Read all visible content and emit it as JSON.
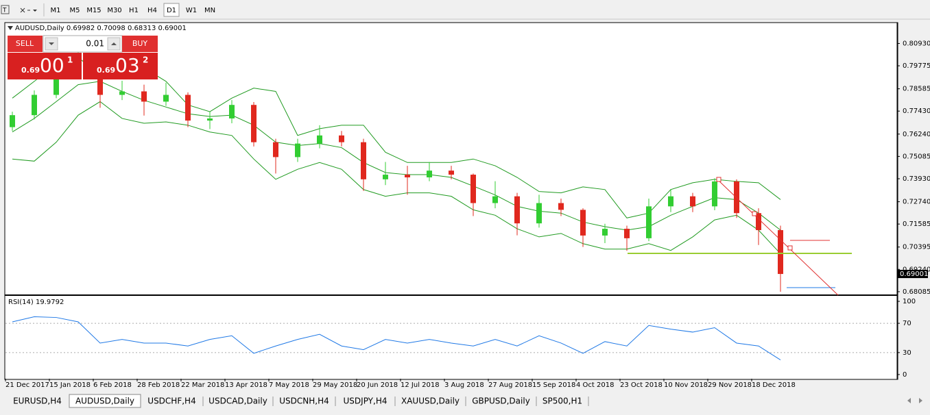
{
  "toolbar": {
    "timeframes": [
      "M1",
      "M5",
      "M15",
      "M30",
      "H1",
      "H4",
      "D1",
      "W1",
      "MN"
    ],
    "active": 6
  },
  "trade_panel": {
    "sell": "SELL",
    "buy": "BUY",
    "lot": "0.01",
    "bid": {
      "prefix": "0.69",
      "big": "00",
      "sup": "1"
    },
    "ask": {
      "prefix": "0.69",
      "big": "03",
      "sup": "2"
    }
  },
  "chart_data": [
    {
      "type": "candlestick",
      "title": "AUDUSD,Daily 0.69982 0.70098 0.68313 0.69001",
      "categories": [
        "21 Dec 2017",
        null,
        "15 Jan 2018",
        null,
        "6 Feb 2018",
        null,
        "28 Feb 2018",
        null,
        "22 Mar 2018",
        null,
        "13 Apr 2018",
        null,
        "7 May 2018",
        null,
        "29 May 2018",
        null,
        "20 Jun 2018",
        null,
        "12 Jul 2018",
        null,
        "3 Aug 2018",
        null,
        "27 Aug 2018",
        null,
        "15 Sep 2018",
        null,
        "4 Oct 2018",
        null,
        "23 Oct 2018",
        null,
        "10 Nov 2018",
        null,
        "29 Nov 2018",
        null,
        "18 Dec 2018",
        null
      ],
      "ohlc": [
        [
          0.766,
          0.774,
          0.764,
          0.7722
        ],
        [
          0.7722,
          0.785,
          0.77,
          0.7827
        ],
        [
          0.7827,
          0.798,
          0.781,
          0.795
        ],
        [
          0.795,
          0.81,
          0.793,
          0.7967
        ],
        [
          0.7967,
          0.8,
          0.776,
          0.7827
        ],
        [
          0.7827,
          0.79,
          0.78,
          0.7845
        ],
        [
          0.7845,
          0.788,
          0.772,
          0.7792
        ],
        [
          0.7792,
          0.789,
          0.777,
          0.7827
        ],
        [
          0.7827,
          0.784,
          0.766,
          0.7694
        ],
        [
          0.7694,
          0.774,
          0.765,
          0.7705
        ],
        [
          0.7705,
          0.78,
          0.768,
          0.7775
        ],
        [
          0.7775,
          0.779,
          0.756,
          0.7582
        ],
        [
          0.7582,
          0.76,
          0.742,
          0.7505
        ],
        [
          0.7505,
          0.76,
          0.748,
          0.7575
        ],
        [
          0.7575,
          0.767,
          0.755,
          0.7617
        ],
        [
          0.7617,
          0.764,
          0.756,
          0.7582
        ],
        [
          0.7582,
          0.76,
          0.733,
          0.739
        ],
        [
          0.739,
          0.748,
          0.736,
          0.7414
        ],
        [
          0.7414,
          0.746,
          0.731,
          0.74
        ],
        [
          0.74,
          0.748,
          0.738,
          0.7435
        ],
        [
          0.7435,
          0.746,
          0.739,
          0.7414
        ],
        [
          0.7414,
          0.742,
          0.72,
          0.7267
        ],
        [
          0.7267,
          0.738,
          0.724,
          0.7302
        ],
        [
          0.7302,
          0.732,
          0.71,
          0.7162
        ],
        [
          0.7162,
          0.731,
          0.714,
          0.7267
        ],
        [
          0.7267,
          0.729,
          0.72,
          0.7232
        ],
        [
          0.7232,
          0.724,
          0.704,
          0.7099
        ],
        [
          0.7099,
          0.716,
          0.706,
          0.7134
        ],
        [
          0.7134,
          0.715,
          0.702,
          0.7085
        ],
        [
          0.7085,
          0.729,
          0.707,
          0.725
        ],
        [
          0.725,
          0.734,
          0.722,
          0.7302
        ],
        [
          0.7302,
          0.732,
          0.722,
          0.725
        ],
        [
          0.725,
          0.7395,
          0.723,
          0.7379
        ],
        [
          0.7379,
          0.739,
          0.719,
          0.7215
        ],
        [
          0.7215,
          0.724,
          0.705,
          0.7127
        ],
        [
          0.7127,
          0.715,
          0.6808,
          0.69001
        ]
      ],
      "up_color": "#32cd32",
      "down_color": "#e0281e",
      "series": [
        {
          "color": "#1f9a1f",
          "values": [
            0.781,
            0.7897,
            0.7985,
            0.802,
            0.7932,
            0.7932,
            0.7967,
            0.7897,
            0.7775,
            0.774,
            0.781,
            0.7862,
            0.7845,
            0.7617,
            0.7652,
            0.767,
            0.767,
            0.753,
            0.7477,
            0.7477,
            0.7477,
            0.7495,
            0.746,
            0.74,
            0.7327,
            0.732,
            0.7351,
            0.7337,
            0.719,
            0.7215,
            0.7337,
            0.7372,
            0.739,
            0.7379,
            0.7372,
            0.7285
          ]
        },
        {
          "color": "#1f9a1f",
          "values": [
            0.7635,
            0.7705,
            0.7792,
            0.788,
            0.7897,
            0.7845,
            0.7799,
            0.7764,
            0.7729,
            0.7715,
            0.7722,
            0.767,
            0.7582,
            0.7565,
            0.7575,
            0.7554,
            0.7477,
            0.7425,
            0.7414,
            0.7414,
            0.74,
            0.7355,
            0.7309,
            0.725,
            0.7225,
            0.7215,
            0.7169,
            0.7145,
            0.7127,
            0.7145,
            0.7204,
            0.725,
            0.7295,
            0.7285,
            0.7215,
            0.7127
          ]
        },
        {
          "color": "#1f9a1f",
          "values": [
            0.7495,
            0.7484,
            0.7582,
            0.7722,
            0.7792,
            0.7705,
            0.768,
            0.7687,
            0.767,
            0.7635,
            0.7617,
            0.7495,
            0.739,
            0.7442,
            0.7477,
            0.7442,
            0.7337,
            0.7302,
            0.732,
            0.732,
            0.7302,
            0.7232,
            0.7204,
            0.7134,
            0.7092,
            0.711,
            0.7057,
            0.7029,
            0.7029,
            0.7057,
            0.7022,
            0.7092,
            0.718,
            0.7204,
            0.7127,
            0.7005
          ]
        }
      ],
      "ylim": [
        0.6794,
        0.8201
      ],
      "yticks": [
        {
          "value": 0.8093,
          "label": "0.80930"
        },
        {
          "value": 0.79775,
          "label": "0.79775"
        },
        {
          "value": 0.78585,
          "label": "0.78585"
        },
        {
          "value": 0.7743,
          "label": "0.77430"
        },
        {
          "value": 0.7624,
          "label": "0.76240"
        },
        {
          "value": 0.75085,
          "label": "0.75085"
        },
        {
          "value": 0.7393,
          "label": "0.73930"
        },
        {
          "value": 0.7274,
          "label": "0.72740"
        },
        {
          "value": 0.71585,
          "label": "0.71585"
        },
        {
          "value": 0.70395,
          "label": "0.70395"
        },
        {
          "value": 0.6924,
          "label": "0.69240"
        },
        {
          "value": 0.68085,
          "label": "0.68085"
        }
      ],
      "price_label": "0.69001"
    },
    {
      "type": "line",
      "title": "RSI(14) 19.9792",
      "series": [
        {
          "color": "#1e78e6",
          "values": [
            72,
            79,
            78,
            72,
            43,
            48,
            43,
            43,
            39,
            48,
            53,
            29,
            39,
            48,
            55,
            39,
            34,
            48,
            43,
            48,
            43,
            39,
            48,
            39,
            53,
            43,
            29,
            45,
            39,
            67,
            62,
            58,
            64,
            43,
            39,
            19.9792
          ]
        }
      ],
      "ylim": [
        -5.7,
        106.6
      ],
      "yticks": [
        100,
        70,
        30,
        0
      ],
      "levels": [
        70,
        30
      ]
    }
  ],
  "tabs": {
    "items": [
      "EURUSD,H4",
      "AUDUSD,Daily",
      "USDCHF,H4",
      "USDCAD,Daily",
      "USDCNH,H4",
      "USDJPY,H4",
      "XAUUSD,Daily",
      "GBPUSD,Daily",
      "SP500,H1"
    ],
    "active": 1
  }
}
